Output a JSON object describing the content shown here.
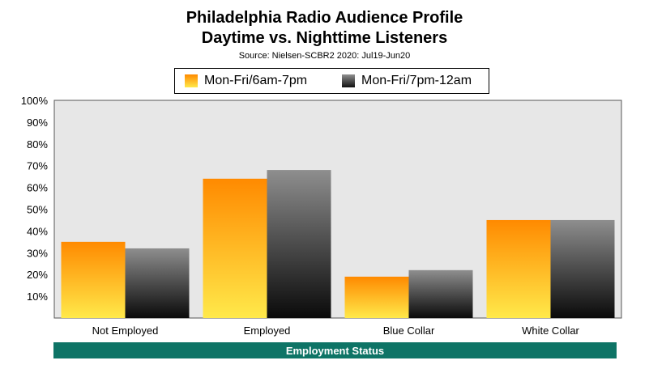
{
  "chart_data": {
    "type": "bar",
    "title": "Philadelphia Radio Audience Profile",
    "subtitle": "Daytime vs. Nighttime Listeners",
    "source": "Source: Nielsen-SCBR2 2020: Jul19-Jun20",
    "xlabel": "Employment Status",
    "ylabel": "",
    "categories": [
      "Not Employed",
      "Employed",
      "Blue Collar",
      "White Collar"
    ],
    "series": [
      {
        "name": "Mon-Fri/6am-7pm",
        "values": [
          35,
          64,
          19,
          45
        ],
        "color": "#ff8a00"
      },
      {
        "name": "Mon-Fri/7pm-12am",
        "values": [
          32,
          68,
          22,
          45
        ],
        "color": "#303030"
      }
    ],
    "ylim": [
      0,
      100
    ],
    "yticks": [
      "10%",
      "20%",
      "30%",
      "40%",
      "50%",
      "60%",
      "70%",
      "80%",
      "90%",
      "100%"
    ],
    "grid": false,
    "legend_position": "top",
    "colors": {
      "plot_background": "#e7e7e7",
      "axis_title_band": "#0e7466"
    }
  }
}
